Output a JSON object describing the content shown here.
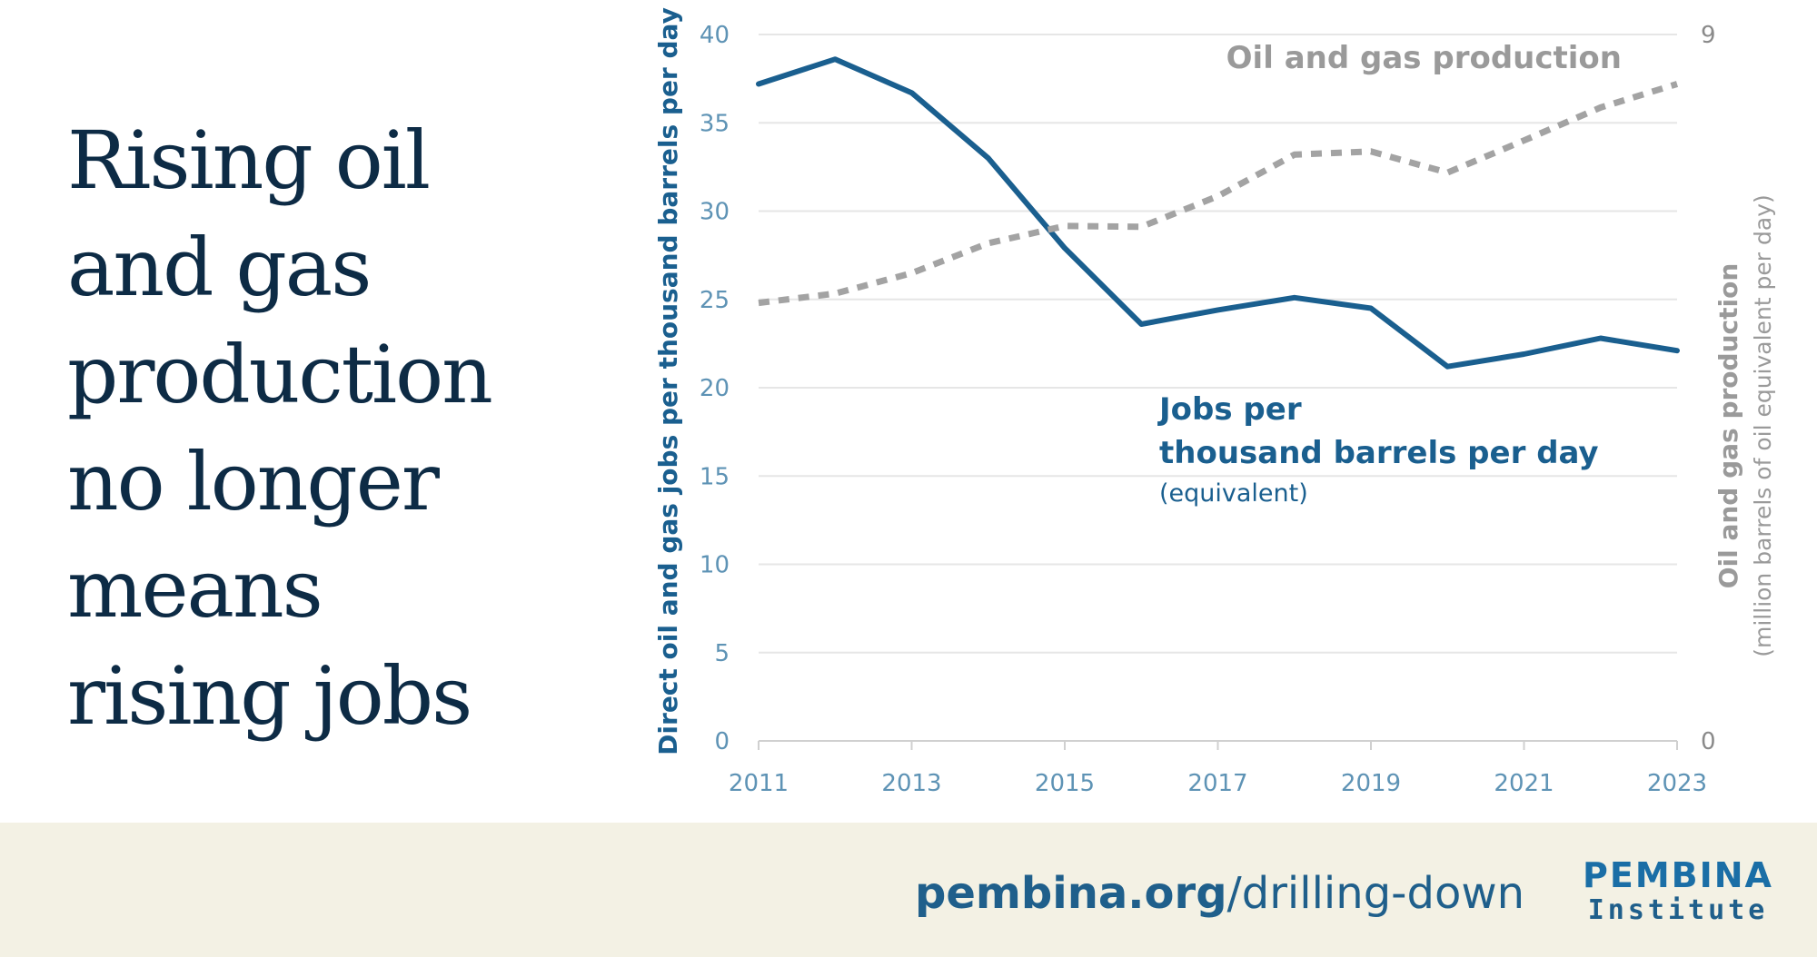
{
  "headline": {
    "lines": [
      "Rising oil",
      "and gas",
      "production",
      "no longer",
      "means",
      "rising jobs"
    ]
  },
  "chart_data": {
    "type": "line",
    "x": [
      2011,
      2012,
      2013,
      2014,
      2015,
      2016,
      2017,
      2018,
      2019,
      2020,
      2021,
      2022,
      2023
    ],
    "x_ticks": [
      "2011",
      "2013",
      "2015",
      "2017",
      "2019",
      "2021",
      "2023"
    ],
    "y_left": {
      "label": "Direct oil and gas jobs per thousand barrels per day",
      "ticks": [
        "0",
        "5",
        "10",
        "15",
        "20",
        "25",
        "30",
        "35",
        "40"
      ],
      "range": [
        0,
        40
      ]
    },
    "y_right": {
      "label": "Oil and gas production",
      "sublabel": "(million barrels of oil equivalent per day)",
      "ticks": [
        "0",
        "9"
      ],
      "range": [
        0,
        9
      ]
    },
    "series": [
      {
        "name": "Jobs per thousand barrels per day",
        "label_line1": "Jobs per",
        "label_line2": "thousand barrels per day",
        "label_note": "(equivalent)",
        "axis": "left",
        "color": "#1a5f8f",
        "style": "solid",
        "values": [
          37.2,
          38.6,
          36.7,
          33.0,
          27.9,
          23.6,
          24.4,
          25.1,
          24.5,
          21.2,
          21.9,
          22.8,
          22.1
        ]
      },
      {
        "name": "Oil and gas production",
        "axis": "right",
        "color": "#a3a3a3",
        "style": "dotted",
        "values": [
          5.58,
          5.7,
          5.96,
          6.34,
          6.56,
          6.55,
          6.94,
          7.47,
          7.51,
          7.24,
          7.65,
          8.07,
          8.37
        ]
      }
    ],
    "grid": true,
    "legend": "inline labels"
  },
  "footer": {
    "url_bold": "pembina.org",
    "url_rest": "/drilling-down",
    "logo_line1": "PEMBINA",
    "logo_line2": "Institute"
  },
  "colors": {
    "jobs": "#1a5f8f",
    "production": "#a3a3a3",
    "headline": "#0d2b45",
    "footer_bg": "#f3f1e4"
  }
}
